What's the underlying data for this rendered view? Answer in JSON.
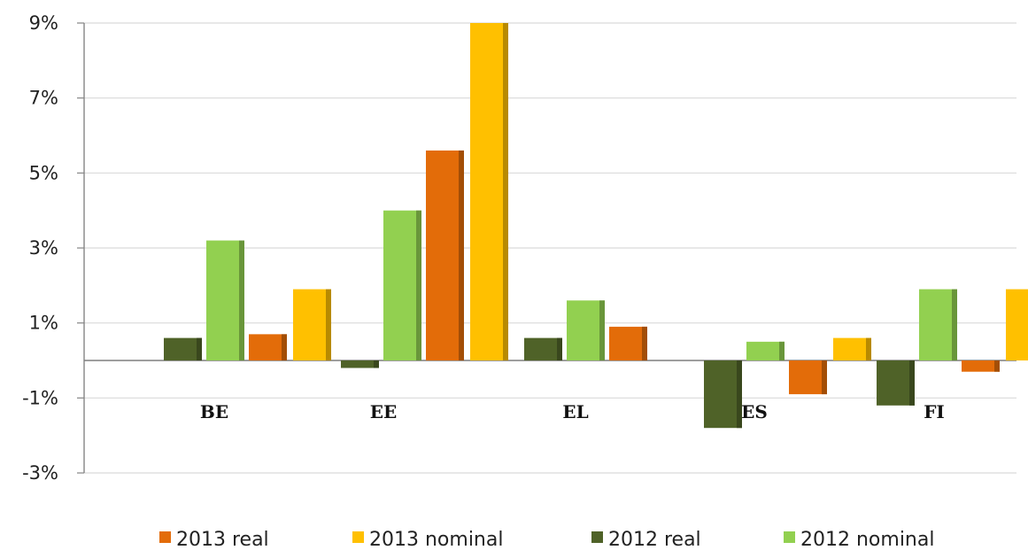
{
  "chart_data": {
    "type": "bar",
    "categories": [
      "BE",
      "EE",
      "EL",
      "ES",
      "FI"
    ],
    "series": [
      {
        "name": "2012 real",
        "color": "#4f6228",
        "values": [
          0.6,
          -0.2,
          0.6,
          -1.8,
          -1.2
        ]
      },
      {
        "name": "2012 nominal",
        "color": "#92d050",
        "values": [
          3.2,
          4.0,
          1.6,
          0.5,
          1.9
        ]
      },
      {
        "name": "2013 real",
        "color": "#e36c09",
        "values": [
          0.7,
          5.6,
          0.9,
          -0.9,
          -0.3
        ]
      },
      {
        "name": "2013 nominal",
        "color": "#ffc000",
        "values": [
          1.9,
          9.0,
          null,
          0.6,
          1.9
        ]
      }
    ],
    "legend_order": [
      "2013 real",
      "2013 nominal",
      "2012 real",
      "2012 nominal"
    ],
    "ylim": [
      -3,
      9
    ],
    "yticks": [
      9,
      7,
      5,
      3,
      1,
      -1,
      -3
    ],
    "ytick_labels": [
      "9%",
      "7%",
      "5%",
      "3%",
      "1%",
      "-1%",
      "-3%"
    ],
    "grid": true,
    "legend_position": "bottom",
    "title": "",
    "xlabel": "",
    "ylabel": ""
  }
}
